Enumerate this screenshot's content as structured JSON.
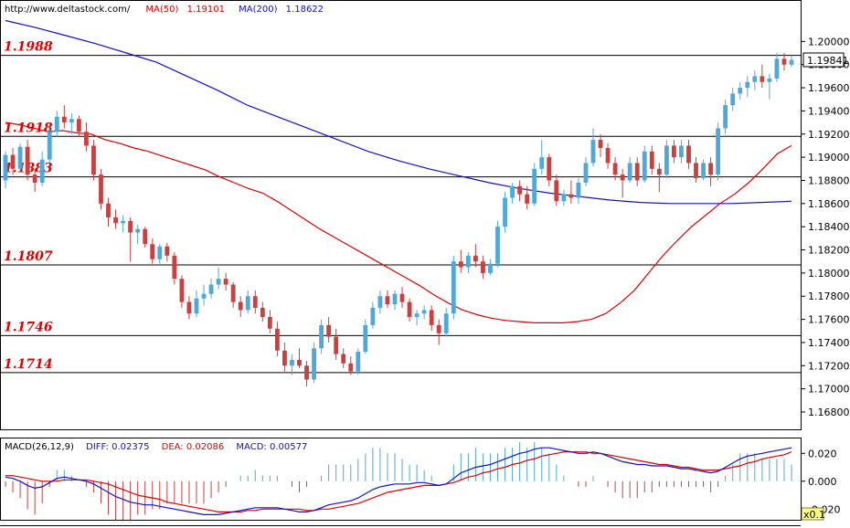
{
  "header": {
    "url": "http://www.deltastock.com/",
    "ma50_label": "MA(50)",
    "ma50_value": "1.19101",
    "ma200_label": "MA(200)",
    "ma200_value": "1.18622"
  },
  "macd_header": {
    "label": "MACD(26,12,9)",
    "diff_label": "DIFF:",
    "diff_value": "0.02375",
    "dea_label": "DEA:",
    "dea_value": "0.02086",
    "macd_label": "MACD:",
    "macd_value": "0.00577"
  },
  "colors": {
    "bull": "#4fa8d8",
    "bear": "#c84040",
    "ma50": "#e00000",
    "ma200": "#1010d0",
    "level_text": "#e00000"
  },
  "chart_data": [
    {
      "type": "candlestick",
      "ylim": [
        1.1665,
        1.2035
      ],
      "yticks": [
        "1.20000",
        "1.19800",
        "1.19600",
        "1.19400",
        "1.19200",
        "1.19000",
        "1.18800",
        "1.18600",
        "1.18400",
        "1.18200",
        "1.18000",
        "1.17800",
        "1.17600",
        "1.17400",
        "1.17200",
        "1.17000",
        "1.16800"
      ],
      "last_price": "1.19841",
      "levels": [
        "1.1988",
        "1.1918",
        "1.1883",
        "1.1807",
        "1.1746",
        "1.1714"
      ],
      "candles": [
        [
          1.188,
          1.1905,
          1.1873,
          1.1902
        ],
        [
          1.1902,
          1.1908,
          1.1885,
          1.189
        ],
        [
          1.189,
          1.1912,
          1.1888,
          1.1909
        ],
        [
          1.1909,
          1.1915,
          1.188,
          1.1885
        ],
        [
          1.1885,
          1.189,
          1.187,
          1.1878
        ],
        [
          1.1878,
          1.1905,
          1.1875,
          1.1898
        ],
        [
          1.1898,
          1.1925,
          1.1895,
          1.1922
        ],
        [
          1.1922,
          1.194,
          1.1918,
          1.1935
        ],
        [
          1.1935,
          1.1945,
          1.1925,
          1.193
        ],
        [
          1.193,
          1.1938,
          1.192,
          1.1933
        ],
        [
          1.1933,
          1.1936,
          1.1918,
          1.1922
        ],
        [
          1.1922,
          1.193,
          1.1905,
          1.191
        ],
        [
          1.191,
          1.1915,
          1.188,
          1.1885
        ],
        [
          1.1885,
          1.189,
          1.1855,
          1.186
        ],
        [
          1.186,
          1.1865,
          1.184,
          1.1848
        ],
        [
          1.1848,
          1.1855,
          1.1838,
          1.1843
        ],
        [
          1.1843,
          1.185,
          1.1835,
          1.1845
        ],
        [
          1.1845,
          1.1848,
          1.181,
          1.1835
        ],
        [
          1.1835,
          1.1842,
          1.1825,
          1.1838
        ],
        [
          1.1838,
          1.184,
          1.1822,
          1.1825
        ],
        [
          1.1825,
          1.183,
          1.1808,
          1.1812
        ],
        [
          1.1812,
          1.1825,
          1.1808,
          1.1823
        ],
        [
          1.1823,
          1.1826,
          1.181,
          1.1815
        ],
        [
          1.1815,
          1.1818,
          1.179,
          1.1795
        ],
        [
          1.1795,
          1.1798,
          1.177,
          1.1775
        ],
        [
          1.1775,
          1.178,
          1.176,
          1.1765
        ],
        [
          1.1765,
          1.1785,
          1.1762,
          1.1778
        ],
        [
          1.1778,
          1.179,
          1.1772,
          1.1782
        ],
        [
          1.1782,
          1.1795,
          1.1778,
          1.179
        ],
        [
          1.179,
          1.1805,
          1.1786,
          1.1795
        ],
        [
          1.1795,
          1.18,
          1.1785,
          1.179
        ],
        [
          1.179,
          1.1792,
          1.177,
          1.1775
        ],
        [
          1.1775,
          1.178,
          1.1762,
          1.1768
        ],
        [
          1.1768,
          1.1785,
          1.1765,
          1.178
        ],
        [
          1.178,
          1.1785,
          1.1765,
          1.177
        ],
        [
          1.177,
          1.1775,
          1.1758,
          1.1762
        ],
        [
          1.1762,
          1.1768,
          1.1748,
          1.1752
        ],
        [
          1.1752,
          1.1758,
          1.1728,
          1.1733
        ],
        [
          1.1733,
          1.174,
          1.1715,
          1.172
        ],
        [
          1.172,
          1.173,
          1.1712,
          1.1725
        ],
        [
          1.1725,
          1.1735,
          1.1718,
          1.172
        ],
        [
          1.172,
          1.1724,
          1.1702,
          1.1708
        ],
        [
          1.1708,
          1.174,
          1.1705,
          1.1735
        ],
        [
          1.1735,
          1.176,
          1.173,
          1.1755
        ],
        [
          1.1755,
          1.1762,
          1.174,
          1.1745
        ],
        [
          1.1745,
          1.1752,
          1.1725,
          1.173
        ],
        [
          1.173,
          1.1735,
          1.1718,
          1.1722
        ],
        [
          1.1722,
          1.1728,
          1.1712,
          1.1715
        ],
        [
          1.1715,
          1.1735,
          1.1712,
          1.1732
        ],
        [
          1.1732,
          1.176,
          1.173,
          1.1755
        ],
        [
          1.1755,
          1.1775,
          1.1752,
          1.177
        ],
        [
          1.177,
          1.1785,
          1.1765,
          1.178
        ],
        [
          1.178,
          1.1785,
          1.177,
          1.1773
        ],
        [
          1.1773,
          1.1785,
          1.1768,
          1.1782
        ],
        [
          1.1782,
          1.1788,
          1.177,
          1.1775
        ],
        [
          1.1775,
          1.1778,
          1.1758,
          1.1762
        ],
        [
          1.1762,
          1.1768,
          1.1755,
          1.1765
        ],
        [
          1.1765,
          1.1772,
          1.176,
          1.1768
        ],
        [
          1.1768,
          1.1772,
          1.175,
          1.1755
        ],
        [
          1.1755,
          1.176,
          1.1738,
          1.1748
        ],
        [
          1.1748,
          1.177,
          1.1745,
          1.1765
        ],
        [
          1.1765,
          1.1815,
          1.176,
          1.181
        ],
        [
          1.181,
          1.182,
          1.18,
          1.1805
        ],
        [
          1.1805,
          1.1818,
          1.18,
          1.1815
        ],
        [
          1.1815,
          1.1825,
          1.1805,
          1.181
        ],
        [
          1.181,
          1.1815,
          1.1795,
          1.18
        ],
        [
          1.18,
          1.1812,
          1.1798,
          1.1808
        ],
        [
          1.1808,
          1.1845,
          1.1805,
          1.184
        ],
        [
          1.184,
          1.187,
          1.1835,
          1.1865
        ],
        [
          1.1865,
          1.1878,
          1.186,
          1.1875
        ],
        [
          1.1875,
          1.188,
          1.1862,
          1.1868
        ],
        [
          1.1868,
          1.1875,
          1.1855,
          1.186
        ],
        [
          1.186,
          1.1895,
          1.1858,
          1.189
        ],
        [
          1.189,
          1.1915,
          1.1885,
          1.19
        ],
        [
          1.19,
          1.1903,
          1.1875,
          1.188
        ],
        [
          1.188,
          1.1885,
          1.1858,
          1.1862
        ],
        [
          1.1862,
          1.1872,
          1.1858,
          1.1868
        ],
        [
          1.1868,
          1.188,
          1.186,
          1.1865
        ],
        [
          1.1865,
          1.1882,
          1.186,
          1.1878
        ],
        [
          1.1878,
          1.19,
          1.1875,
          1.1895
        ],
        [
          1.1895,
          1.1925,
          1.1892,
          1.1915
        ],
        [
          1.1915,
          1.192,
          1.19,
          1.1908
        ],
        [
          1.1908,
          1.1912,
          1.189,
          1.1895
        ],
        [
          1.1895,
          1.19,
          1.188,
          1.1885
        ],
        [
          1.1885,
          1.189,
          1.1865,
          1.188
        ],
        [
          1.188,
          1.19,
          1.1878,
          1.1895
        ],
        [
          1.1895,
          1.19,
          1.1875,
          1.188
        ],
        [
          1.188,
          1.191,
          1.1878,
          1.1905
        ],
        [
          1.1905,
          1.191,
          1.1885,
          1.189
        ],
        [
          1.189,
          1.1895,
          1.187,
          1.1885
        ],
        [
          1.1885,
          1.1915,
          1.1882,
          1.191
        ],
        [
          1.191,
          1.1915,
          1.1895,
          1.19
        ],
        [
          1.19,
          1.1915,
          1.1895,
          1.191
        ],
        [
          1.191,
          1.1915,
          1.189,
          1.1895
        ],
        [
          1.1895,
          1.19,
          1.1878,
          1.1882
        ],
        [
          1.1882,
          1.1898,
          1.188,
          1.1895
        ],
        [
          1.1895,
          1.19,
          1.1875,
          1.1885
        ],
        [
          1.1885,
          1.193,
          1.188,
          1.1925
        ],
        [
          1.1925,
          1.195,
          1.192,
          1.1945
        ],
        [
          1.1945,
          1.196,
          1.194,
          1.1955
        ],
        [
          1.1955,
          1.1965,
          1.195,
          1.196
        ],
        [
          1.196,
          1.197,
          1.1952,
          1.1965
        ],
        [
          1.1965,
          1.1975,
          1.1958,
          1.197
        ],
        [
          1.197,
          1.198,
          1.196,
          1.1965
        ],
        [
          1.1965,
          1.1972,
          1.195,
          1.1968
        ],
        [
          1.1968,
          1.199,
          1.1965,
          1.1985
        ],
        [
          1.1985,
          1.199,
          1.1975,
          1.198
        ],
        [
          1.198,
          1.1988,
          1.1978,
          1.1984
        ]
      ],
      "ma50": [
        1.193,
        1.1928,
        1.1925,
        1.1922,
        1.1923,
        1.1921,
        1.192,
        1.1915,
        1.1912,
        1.1908,
        1.1905,
        1.1901,
        1.1897,
        1.1893,
        1.1889,
        1.1883,
        1.1878,
        1.1873,
        1.1869,
        1.1862,
        1.1854,
        1.1846,
        1.1838,
        1.1831,
        1.1824,
        1.1817,
        1.181,
        1.1803,
        1.1796,
        1.1789,
        1.1781,
        1.1774,
        1.1768,
        1.1764,
        1.1761,
        1.1759,
        1.1758,
        1.1757,
        1.1757,
        1.1757,
        1.1758,
        1.176,
        1.1765,
        1.1774,
        1.1785,
        1.18,
        1.1815,
        1.1828,
        1.184,
        1.185,
        1.186,
        1.1868,
        1.1878,
        1.189,
        1.1903,
        1.191
      ],
      "ma200": [
        1.2018,
        1.2012,
        1.2005,
        1.1998,
        1.199,
        1.1982,
        1.197,
        1.1958,
        1.1945,
        1.1935,
        1.1925,
        1.1915,
        1.1905,
        1.1897,
        1.189,
        1.1884,
        1.1878,
        1.1873,
        1.1869,
        1.1866,
        1.1863,
        1.1861,
        1.186,
        1.186,
        1.186,
        1.1861,
        1.1862
      ]
    },
    {
      "type": "macd",
      "ylim": [
        -0.027,
        0.03
      ],
      "yticks": [
        "0.020",
        "0.000",
        "-0.020"
      ],
      "scale_label": "x0.1",
      "diff": [
        0.003,
        0.002,
        0.0,
        -0.003,
        -0.005,
        -0.004,
        -0.001,
        0.002,
        0.003,
        0.002,
        0.001,
        0.0,
        -0.002,
        -0.005,
        -0.008,
        -0.011,
        -0.013,
        -0.015,
        -0.016,
        -0.017,
        -0.017,
        -0.018,
        -0.019,
        -0.02,
        -0.021,
        -0.022,
        -0.023,
        -0.024,
        -0.024,
        -0.024,
        -0.023,
        -0.022,
        -0.021,
        -0.02,
        -0.019,
        -0.019,
        -0.019,
        -0.019,
        -0.02,
        -0.021,
        -0.022,
        -0.022,
        -0.021,
        -0.019,
        -0.017,
        -0.016,
        -0.015,
        -0.014,
        -0.012,
        -0.009,
        -0.006,
        -0.004,
        -0.003,
        -0.002,
        -0.002,
        -0.002,
        -0.001,
        -0.001,
        -0.002,
        -0.003,
        -0.002,
        0.002,
        0.006,
        0.008,
        0.01,
        0.011,
        0.012,
        0.014,
        0.016,
        0.018,
        0.02,
        0.021,
        0.023,
        0.024,
        0.024,
        0.023,
        0.022,
        0.021,
        0.02,
        0.02,
        0.021,
        0.02,
        0.018,
        0.016,
        0.014,
        0.013,
        0.012,
        0.012,
        0.011,
        0.011,
        0.011,
        0.01,
        0.009,
        0.009,
        0.008,
        0.007,
        0.006,
        0.007,
        0.01,
        0.013,
        0.016,
        0.018,
        0.019,
        0.02,
        0.021,
        0.022,
        0.023,
        0.024
      ],
      "dea": [
        0.004,
        0.004,
        0.003,
        0.002,
        0.001,
        0.0,
        0.0,
        0.0,
        0.001,
        0.001,
        0.001,
        0.001,
        0.0,
        -0.001,
        -0.002,
        -0.004,
        -0.006,
        -0.008,
        -0.01,
        -0.011,
        -0.012,
        -0.013,
        -0.015,
        -0.016,
        -0.017,
        -0.018,
        -0.019,
        -0.02,
        -0.021,
        -0.022,
        -0.022,
        -0.022,
        -0.022,
        -0.021,
        -0.021,
        -0.02,
        -0.02,
        -0.02,
        -0.02,
        -0.02,
        -0.02,
        -0.021,
        -0.021,
        -0.02,
        -0.02,
        -0.019,
        -0.018,
        -0.017,
        -0.016,
        -0.014,
        -0.012,
        -0.01,
        -0.008,
        -0.007,
        -0.006,
        -0.005,
        -0.004,
        -0.003,
        -0.003,
        -0.003,
        -0.002,
        -0.001,
        0.001,
        0.003,
        0.004,
        0.006,
        0.007,
        0.009,
        0.01,
        0.012,
        0.013,
        0.015,
        0.016,
        0.018,
        0.019,
        0.02,
        0.021,
        0.021,
        0.021,
        0.021,
        0.02,
        0.02,
        0.019,
        0.018,
        0.017,
        0.016,
        0.015,
        0.014,
        0.013,
        0.012,
        0.012,
        0.011,
        0.01,
        0.01,
        0.009,
        0.008,
        0.008,
        0.008,
        0.009,
        0.01,
        0.011,
        0.013,
        0.014,
        0.016,
        0.017,
        0.018,
        0.019,
        0.021
      ]
    }
  ]
}
